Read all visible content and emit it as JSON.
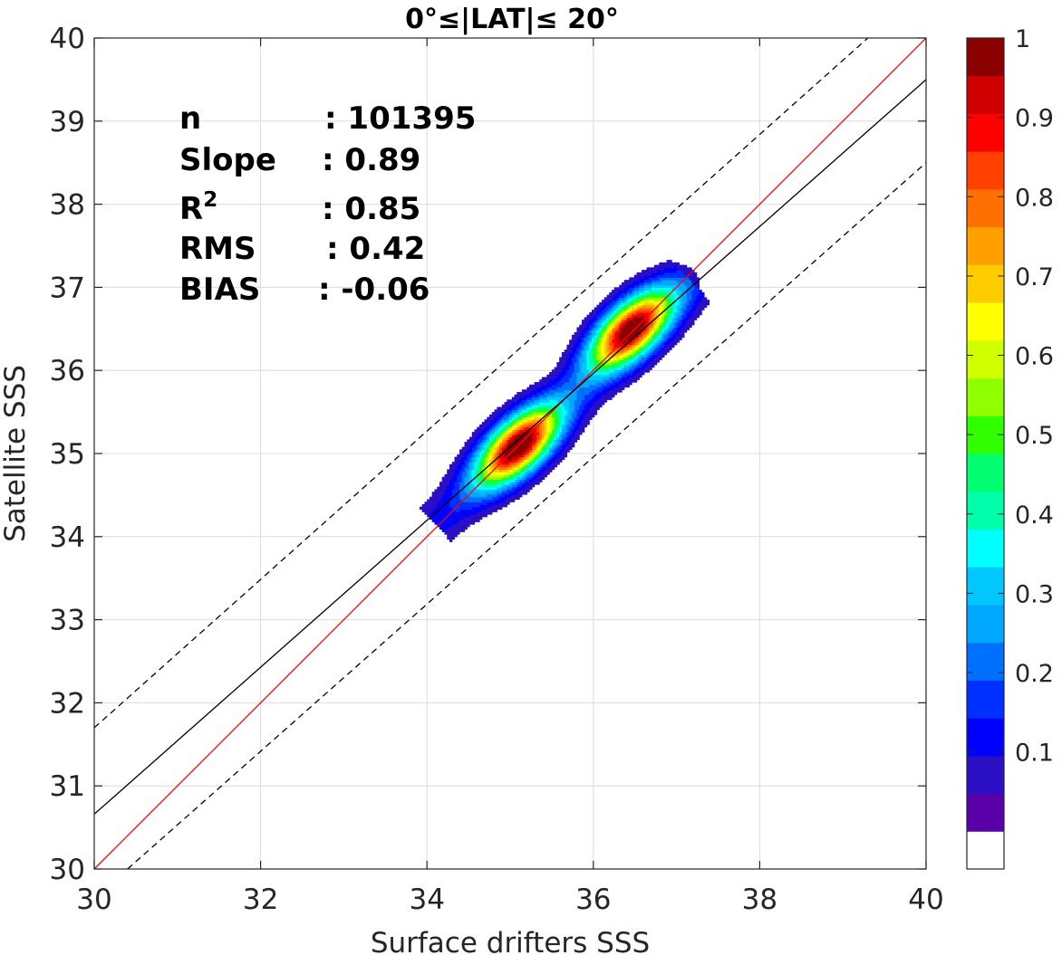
{
  "chart_data": {
    "type": "heatmap",
    "title": "0°≤|LAT|≤ 20°",
    "xlabel": "Surface drifters SSS",
    "ylabel": "Satellite SSS",
    "xlim": [
      30,
      40
    ],
    "ylim": [
      30,
      40
    ],
    "x_ticks": [
      "30",
      "32",
      "34",
      "36",
      "38",
      "40"
    ],
    "x_tick_values": [
      30,
      32,
      34,
      36,
      38,
      40
    ],
    "y_ticks": [
      "30",
      "31",
      "32",
      "33",
      "34",
      "35",
      "36",
      "37",
      "38",
      "39",
      "40"
    ],
    "y_tick_values": [
      30,
      31,
      32,
      33,
      34,
      35,
      36,
      37,
      38,
      39,
      40
    ],
    "grid": true,
    "stats": [
      {
        "label": "n",
        "value": ": 101395"
      },
      {
        "label": "Slope",
        "value": ": 0.89"
      },
      {
        "label": "R",
        "sup": "2",
        "value": ": 0.85"
      },
      {
        "label": "RMS",
        "value": ": 0.42"
      },
      {
        "label": "BIAS",
        "value": ": -0.06"
      }
    ],
    "reference_lines": [
      {
        "kind": "one-to-one",
        "color": "#ff0000",
        "style": "solid",
        "points": [
          [
            30,
            30
          ],
          [
            40,
            40
          ]
        ]
      },
      {
        "kind": "regression",
        "color": "#000000",
        "style": "solid",
        "points": [
          [
            30,
            30.66
          ],
          [
            40,
            39.5
          ]
        ]
      },
      {
        "kind": "upper-bound",
        "color": "#000000",
        "style": "dashed",
        "points": [
          [
            30,
            31.7
          ],
          [
            39.3,
            40
          ]
        ]
      },
      {
        "kind": "lower-bound",
        "color": "#000000",
        "style": "dashed",
        "points": [
          [
            30.4,
            30
          ],
          [
            40,
            38.5
          ]
        ]
      }
    ],
    "density_peaks": [
      {
        "x": 35.1,
        "y": 35.1,
        "sx": 0.42,
        "sy": 0.3,
        "weight": 1.0
      },
      {
        "x": 36.45,
        "y": 36.5,
        "sx": 0.42,
        "sy": 0.3,
        "weight": 1.0
      }
    ],
    "density_ridge": {
      "from": [
        34.1,
        34.15
      ],
      "to": [
        37.2,
        37.05
      ]
    },
    "colorbar": {
      "ticks": [
        "0.1",
        "0.2",
        "0.3",
        "0.4",
        "0.5",
        "0.6",
        "0.7",
        "0.8",
        "0.9",
        "1"
      ],
      "tick_values": [
        0.1,
        0.2,
        0.3,
        0.4,
        0.5,
        0.6,
        0.7,
        0.8,
        0.9,
        1.0
      ],
      "levels": [
        0,
        0.05,
        0.1,
        0.15,
        0.2,
        0.25,
        0.3,
        0.35,
        0.4,
        0.45,
        0.5,
        0.55,
        0.6,
        0.65,
        0.7,
        0.75,
        0.8,
        0.85,
        0.9,
        0.95,
        1.0
      ],
      "colors": [
        "#ffffff",
        "#5a00a8",
        "#2a0fc4",
        "#0000ff",
        "#0030ff",
        "#0070ff",
        "#00a8ff",
        "#00c8ff",
        "#00ffff",
        "#00ffaa",
        "#00ff70",
        "#30ff00",
        "#90ff00",
        "#d0ff00",
        "#ffff00",
        "#ffcc00",
        "#ffa000",
        "#ff7000",
        "#ff4000",
        "#ff0000",
        "#d00000",
        "#8b0000"
      ]
    }
  }
}
